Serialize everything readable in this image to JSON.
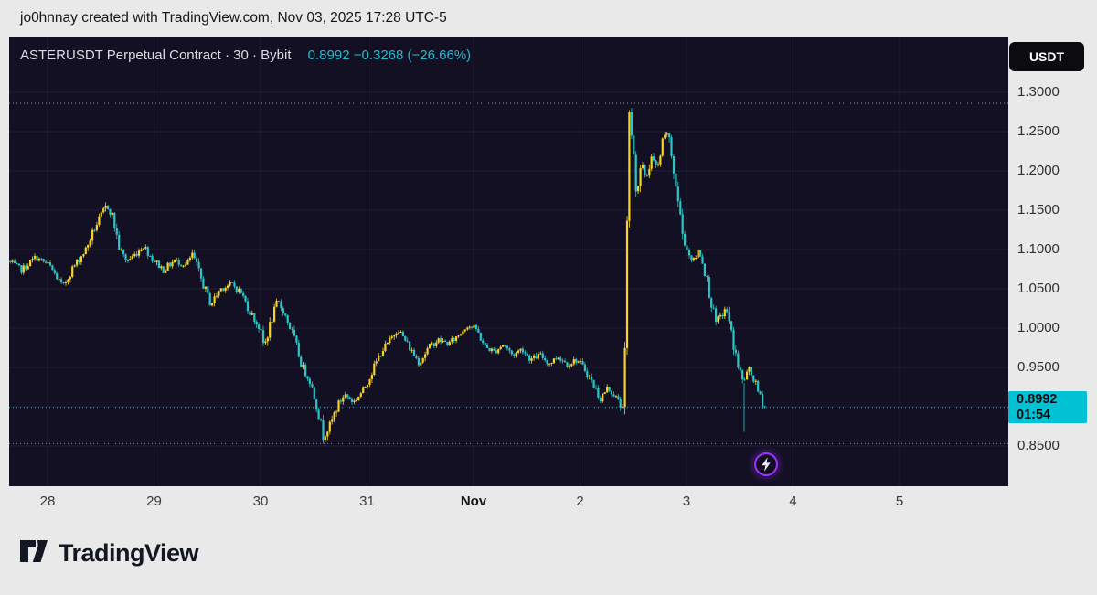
{
  "attribution": "jo0hnnay created with TradingView.com, Nov 03, 2025 17:28 UTC-5",
  "header": {
    "symbol_line": "ASTERUSDT Perpetual Contract · 30 · Bybit",
    "change_line": "0.8992 −0.3268 (−26.66%)"
  },
  "price_axis": {
    "currency_button": "USDT",
    "badge": {
      "price": "0.8992",
      "countdown": "01:54"
    }
  },
  "footer": {
    "brand": "TradingView"
  },
  "chart_data": {
    "type": "candlestick",
    "title": "ASTERUSDT Perpetual Contract · 30 · Bybit",
    "symbol": "ASTERUSDT",
    "contract": "Perpetual Contract",
    "interval_minutes": 30,
    "exchange": "Bybit",
    "quote_currency": "USDT",
    "last_price": 0.8992,
    "change": -0.3268,
    "change_pct": -26.66,
    "countdown": "01:54",
    "ylim": [
      0.838,
      1.335
    ],
    "colors": {
      "up": "#f5d329",
      "down": "#2bc7c7",
      "background": "#131024",
      "axis_text": "#2f2f33",
      "badge": "#00c2d4",
      "header_accent": "#27b9cd"
    },
    "y_ticks": [
      {
        "label": "1.3000",
        "price": 1.3
      },
      {
        "label": "1.2500",
        "price": 1.25
      },
      {
        "label": "1.2000",
        "price": 1.2
      },
      {
        "label": "1.1500",
        "price": 1.15
      },
      {
        "label": "1.1000",
        "price": 1.1
      },
      {
        "label": "1.0500",
        "price": 1.05
      },
      {
        "label": "1.0000",
        "price": 1.0
      },
      {
        "label": "0.9500",
        "price": 0.95
      },
      {
        "label": "0.8500",
        "price": 0.85
      }
    ],
    "grid_prices": [
      1.3,
      1.25,
      1.2,
      1.15,
      1.1,
      1.05,
      1.0,
      0.95,
      0.9,
      0.85
    ],
    "x_ticks": [
      {
        "label": "28",
        "d": 0
      },
      {
        "label": "29",
        "d": 1
      },
      {
        "label": "30",
        "d": 2
      },
      {
        "label": "31",
        "d": 3
      },
      {
        "label": "Nov",
        "d": 4,
        "bold": true
      },
      {
        "label": "2",
        "d": 5
      },
      {
        "label": "3",
        "d": 6
      },
      {
        "label": "4",
        "d": 7
      },
      {
        "label": "5",
        "d": 8
      }
    ],
    "grid_days": [
      0,
      1,
      2,
      3,
      4,
      5,
      6,
      7,
      8
    ],
    "levels": {
      "high_line": 1.286,
      "low_line": 0.853,
      "last_line": 0.8992
    },
    "candle_step_days": 0.0208333,
    "domain_days": [
      -0.36,
      6.75
    ],
    "price_path": [
      [
        -0.36,
        1.085
      ],
      [
        -0.232,
        1.074
      ],
      [
        -0.103,
        1.09
      ],
      [
        0.026,
        1.08
      ],
      [
        0.155,
        1.052
      ],
      [
        0.24,
        1.075
      ],
      [
        0.369,
        1.1
      ],
      [
        0.455,
        1.128
      ],
      [
        0.567,
        1.156
      ],
      [
        0.618,
        1.144
      ],
      [
        0.687,
        1.1
      ],
      [
        0.755,
        1.085
      ],
      [
        0.841,
        1.095
      ],
      [
        0.91,
        1.105
      ],
      [
        0.996,
        1.088
      ],
      [
        1.099,
        1.074
      ],
      [
        1.202,
        1.086
      ],
      [
        1.313,
        1.08
      ],
      [
        1.373,
        1.094
      ],
      [
        1.459,
        1.06
      ],
      [
        1.545,
        1.03
      ],
      [
        1.631,
        1.05
      ],
      [
        1.742,
        1.056
      ],
      [
        1.828,
        1.045
      ],
      [
        1.914,
        1.02
      ],
      [
        2.0,
        1.0
      ],
      [
        2.043,
        0.976
      ],
      [
        2.112,
        1.01
      ],
      [
        2.172,
        1.034
      ],
      [
        2.232,
        1.02
      ],
      [
        2.318,
        0.99
      ],
      [
        2.403,
        0.95
      ],
      [
        2.472,
        0.934
      ],
      [
        2.541,
        0.9
      ],
      [
        2.601,
        0.862
      ],
      [
        2.661,
        0.876
      ],
      [
        2.73,
        0.9
      ],
      [
        2.798,
        0.916
      ],
      [
        2.884,
        0.906
      ],
      [
        2.97,
        0.92
      ],
      [
        3.056,
        0.944
      ],
      [
        3.142,
        0.97
      ],
      [
        3.227,
        0.984
      ],
      [
        3.296,
        1.0
      ],
      [
        3.365,
        0.985
      ],
      [
        3.433,
        0.97
      ],
      [
        3.502,
        0.956
      ],
      [
        3.588,
        0.975
      ],
      [
        3.674,
        0.985
      ],
      [
        3.777,
        0.98
      ],
      [
        3.863,
        0.99
      ],
      [
        3.948,
        1.004
      ],
      [
        4.034,
        0.999
      ],
      [
        4.12,
        0.976
      ],
      [
        4.206,
        0.97
      ],
      [
        4.292,
        0.98
      ],
      [
        4.378,
        0.965
      ],
      [
        4.464,
        0.974
      ],
      [
        4.549,
        0.96
      ],
      [
        4.635,
        0.966
      ],
      [
        4.721,
        0.955
      ],
      [
        4.807,
        0.964
      ],
      [
        4.893,
        0.954
      ],
      [
        4.979,
        0.96
      ],
      [
        5.064,
        0.946
      ],
      [
        5.15,
        0.924
      ],
      [
        5.202,
        0.91
      ],
      [
        5.27,
        0.924
      ],
      [
        5.339,
        0.914
      ],
      [
        5.391,
        0.9
      ],
      [
        5.425,
        0.906
      ],
      [
        5.451,
        1.12
      ],
      [
        5.476,
        1.282
      ],
      [
        5.511,
        1.22
      ],
      [
        5.545,
        1.172
      ],
      [
        5.588,
        1.208
      ],
      [
        5.631,
        1.19
      ],
      [
        5.682,
        1.218
      ],
      [
        5.734,
        1.2
      ],
      [
        5.785,
        1.234
      ],
      [
        5.828,
        1.25
      ],
      [
        5.871,
        1.218
      ],
      [
        5.923,
        1.17
      ],
      [
        5.974,
        1.12
      ],
      [
        6.026,
        1.095
      ],
      [
        6.077,
        1.085
      ],
      [
        6.129,
        1.1
      ],
      [
        6.18,
        1.074
      ],
      [
        6.232,
        1.04
      ],
      [
        6.283,
        1.005
      ],
      [
        6.335,
        1.016
      ],
      [
        6.386,
        1.024
      ],
      [
        6.438,
        0.988
      ],
      [
        6.489,
        0.955
      ],
      [
        6.541,
        0.93
      ],
      [
        6.592,
        0.948
      ],
      [
        6.643,
        0.934
      ],
      [
        6.695,
        0.914
      ],
      [
        6.747,
        0.8992
      ]
    ],
    "extra_wicks": [
      {
        "d": 6.541,
        "low": 0.868
      }
    ]
  }
}
